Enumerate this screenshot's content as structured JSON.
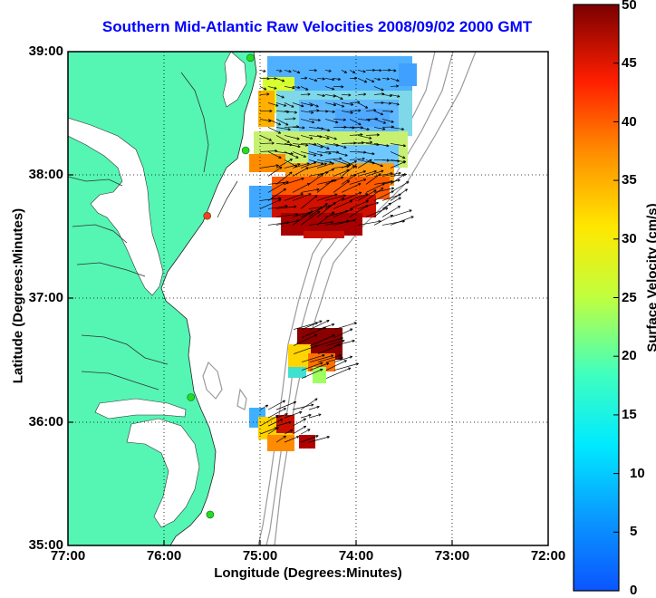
{
  "title": "Southern Mid-Atlantic Raw Velocities 2008/09/02 2000 GMT",
  "axes": {
    "xlabel": "Longitude (Degrees:Minutes)",
    "ylabel": "Latitude (Degrees:Minutes)",
    "xticks": [
      "77:00",
      "76:00",
      "75:00",
      "74:00",
      "73:00",
      "72:00"
    ],
    "yticks": [
      "39:00",
      "38:00",
      "37:00",
      "36:00",
      "35:00"
    ],
    "xlim": [
      -77,
      -72
    ],
    "ylim": [
      35,
      39
    ]
  },
  "colorbar": {
    "label": "Surface Velocity (cm/s)",
    "ticks": [
      "50",
      "45",
      "40",
      "35",
      "30",
      "25",
      "20",
      "15",
      "10",
      "5",
      "0"
    ],
    "range": [
      0,
      50
    ]
  },
  "colors": {
    "land": "#55f5b4",
    "water": "#ffffff",
    "title": "#0000ff",
    "bathymetry": "#9a9a9a",
    "station": "#22dd22",
    "station_alt": "#ff3b1f"
  },
  "stations": [
    {
      "lon": -75.1,
      "lat": 38.95,
      "status": "active"
    },
    {
      "lon": -75.15,
      "lat": 38.2,
      "status": "active"
    },
    {
      "lon": -75.55,
      "lat": 37.67,
      "status": "offline"
    },
    {
      "lon": -75.72,
      "lat": 36.2,
      "status": "active"
    },
    {
      "lon": -75.52,
      "lat": 35.25,
      "status": "active"
    }
  ],
  "velocity_regions": [
    {
      "name": "northern",
      "lon_min": -75.0,
      "lon_max": -73.6,
      "lat_min": 37.55,
      "lat_max": 38.85,
      "speed_pattern": "low north, high south"
    },
    {
      "name": "central",
      "lon_min": -74.65,
      "lon_max": -74.15,
      "lat_min": 36.35,
      "lat_max": 36.75,
      "speed_pattern": "high"
    },
    {
      "name": "southern",
      "lon_min": -75.0,
      "lon_max": -74.45,
      "lat_min": 35.8,
      "lat_max": 36.1,
      "speed_pattern": "mixed"
    }
  ]
}
